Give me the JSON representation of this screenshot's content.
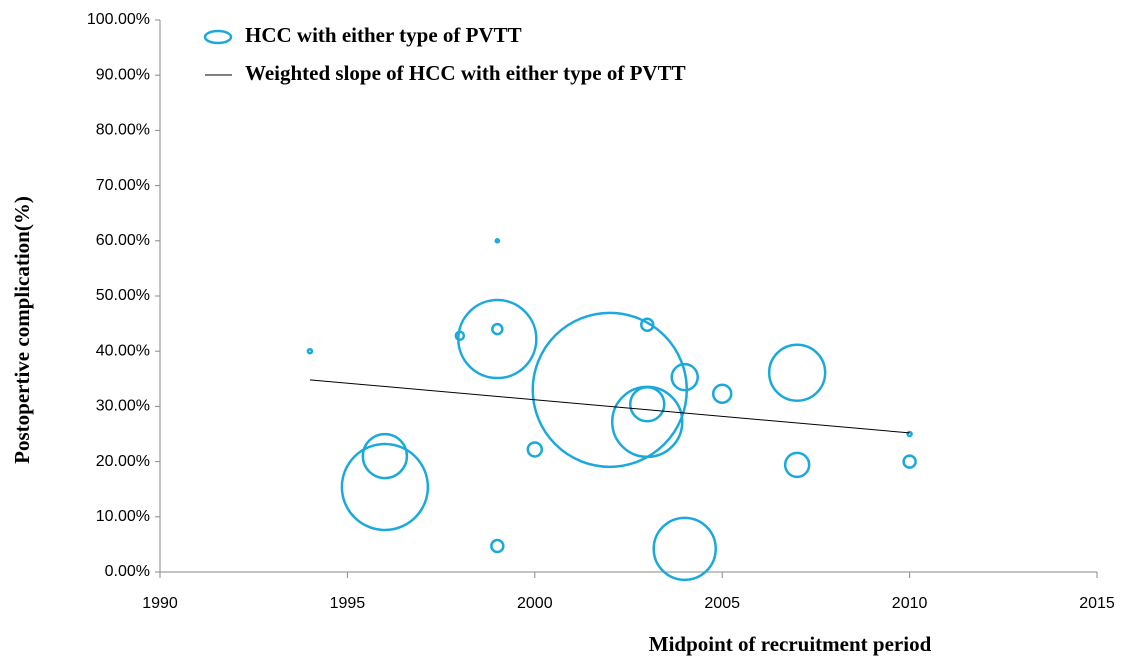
{
  "chart_data": {
    "type": "scatter",
    "xlabel": "Midpoint of recruitment period",
    "ylabel": "Postopertive complication(%)",
    "xlim": [
      1990,
      2015
    ],
    "xticks": [
      1990,
      1995,
      2000,
      2005,
      2010,
      2015
    ],
    "ylim": [
      0,
      100
    ],
    "yticks": [
      {
        "value": 0,
        "label": "0.00%"
      },
      {
        "value": 10,
        "label": "10.00%"
      },
      {
        "value": 20,
        "label": "20.00%"
      },
      {
        "value": 30,
        "label": "30.00%"
      },
      {
        "value": 40,
        "label": "40.00%"
      },
      {
        "value": 50,
        "label": "50.00%"
      },
      {
        "value": 60,
        "label": "60.00%"
      },
      {
        "value": 70,
        "label": "70.00%"
      },
      {
        "value": 80,
        "label": "80.00%"
      },
      {
        "value": 90,
        "label": "90.00%"
      },
      {
        "value": 100,
        "label": "100.00%"
      }
    ],
    "legend": "top-left",
    "series": [
      {
        "name": "HCC with either type of PVTT",
        "color": "#1ba9dd",
        "type": "scatter",
        "x": [
          1994,
          1996,
          1996,
          1998,
          1999,
          1999,
          1999,
          1999,
          2000,
          2002,
          2003,
          2003,
          2003,
          2004,
          2004,
          2005,
          2007,
          2007,
          2010,
          2010
        ],
        "values": [
          40.0,
          21.0,
          15.4,
          42.8,
          60.0,
          44.0,
          42.2,
          4.7,
          22.2,
          33.0,
          44.8,
          30.4,
          27.2,
          35.3,
          4.2,
          32.3,
          36.1,
          19.4,
          25.0,
          20.0
        ],
        "sizes": [
          4,
          484,
          1849,
          16,
          2,
          25,
          1521,
          36,
          49,
          5929,
          36,
          289,
          1225,
          169,
          961,
          81,
          784,
          144,
          4,
          36
        ]
      },
      {
        "name": "Weighted slope of HCC with either type of PVTT",
        "color": "#000000",
        "type": "line",
        "x": [
          1994,
          2010
        ],
        "values": [
          34.8,
          25.2
        ]
      }
    ]
  }
}
